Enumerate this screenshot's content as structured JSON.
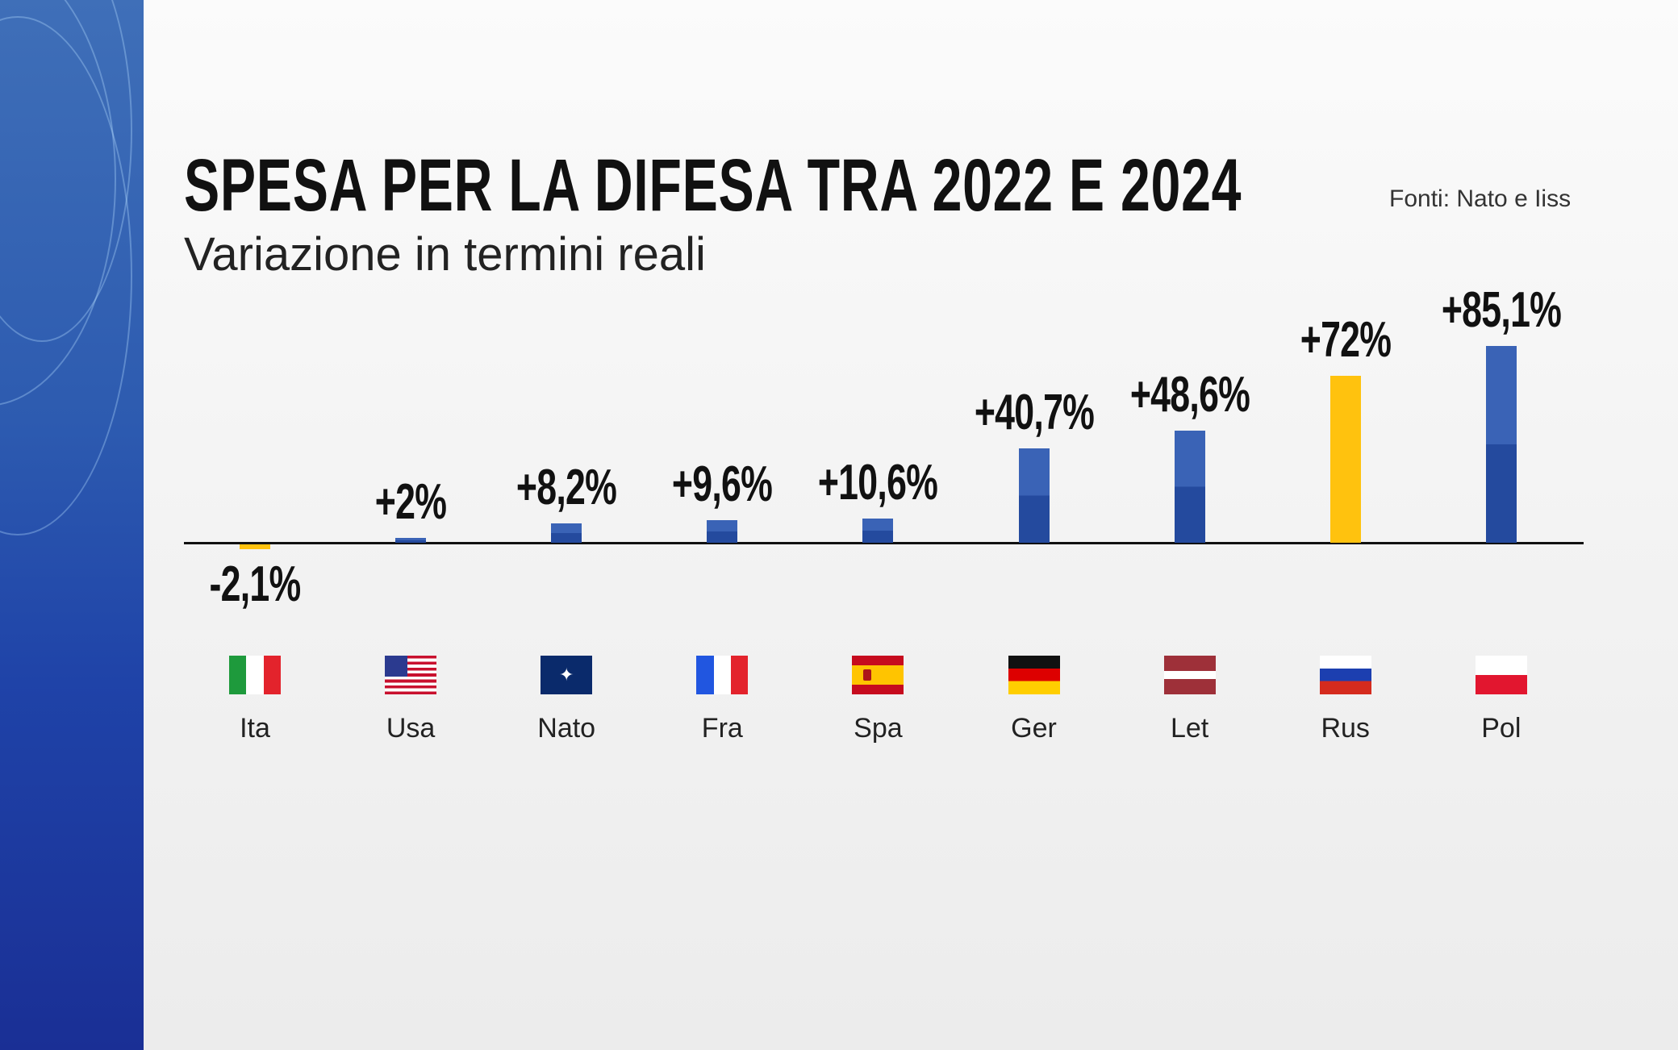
{
  "chart_data": {
    "type": "bar",
    "title": "SPESA PER LA DIFESA TRA 2022 E 2024",
    "subtitle": "Variazione in termini reali",
    "source": "Fonti: Nato e Iiss",
    "categories": [
      "Ita",
      "Usa",
      "Nato",
      "Fra",
      "Spa",
      "Ger",
      "Let",
      "Rus",
      "Pol"
    ],
    "values": [
      -2.1,
      2,
      8.2,
      9.6,
      10.6,
      40.7,
      48.6,
      72,
      85.1
    ],
    "data_labels": [
      "-2,1%",
      "+2%",
      "+8,2%",
      "+9,6%",
      "+10,6%",
      "+40,7%",
      "+48,6%",
      "+72%",
      "+85,1%"
    ],
    "flags": [
      "italy-flag",
      "usa-flag",
      "nato-flag",
      "france-flag",
      "spain-flag",
      "germany-flag",
      "latvia-flag",
      "russia-flag",
      "poland-flag"
    ],
    "bar_colors": [
      "#ffc20e",
      "#2a52a8",
      "#2a52a8",
      "#2a52a8",
      "#2a52a8",
      "#2a52a8",
      "#2a52a8",
      "#ffc20e",
      "#2a52a8"
    ],
    "grid": false,
    "legend": "none",
    "xlabel": "",
    "ylabel": ""
  }
}
